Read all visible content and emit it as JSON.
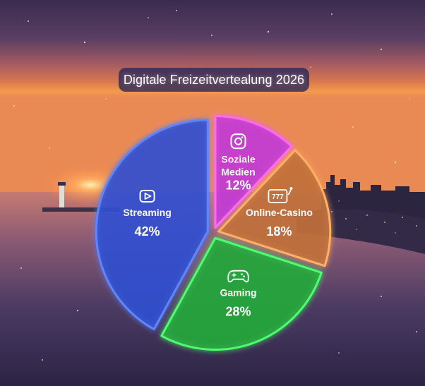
{
  "title": "Digitale Freizeitvertealung 2026",
  "chart_data": {
    "type": "pie",
    "title": "Digitale Freizeitvertealung 2026",
    "slices": [
      {
        "label": "Streaming",
        "lines": [
          "Streaming"
        ],
        "value": 42,
        "value_label": "42%",
        "color": "#2f4fd0",
        "glow": "#5f86ff",
        "icon": "play-button-icon"
      },
      {
        "label": "Soziale Medien",
        "lines": [
          "Soziale",
          "Medien"
        ],
        "value": 12,
        "value_label": "12%",
        "color": "#c23ad6",
        "glow": "#ff6bf2",
        "icon": "instagram-icon"
      },
      {
        "label": "Online-Casino",
        "lines": [
          "Online-Casino"
        ],
        "value": 18,
        "value_label": "18%",
        "color": "#c0703a",
        "glow": "#ffb066",
        "icon": "slot-machine-icon"
      },
      {
        "label": "Gaming",
        "lines": [
          "Gaming"
        ],
        "value": 28,
        "value_label": "28%",
        "color": "#25a83c",
        "glow": "#4dff6e",
        "icon": "gamepad-icon"
      }
    ]
  }
}
